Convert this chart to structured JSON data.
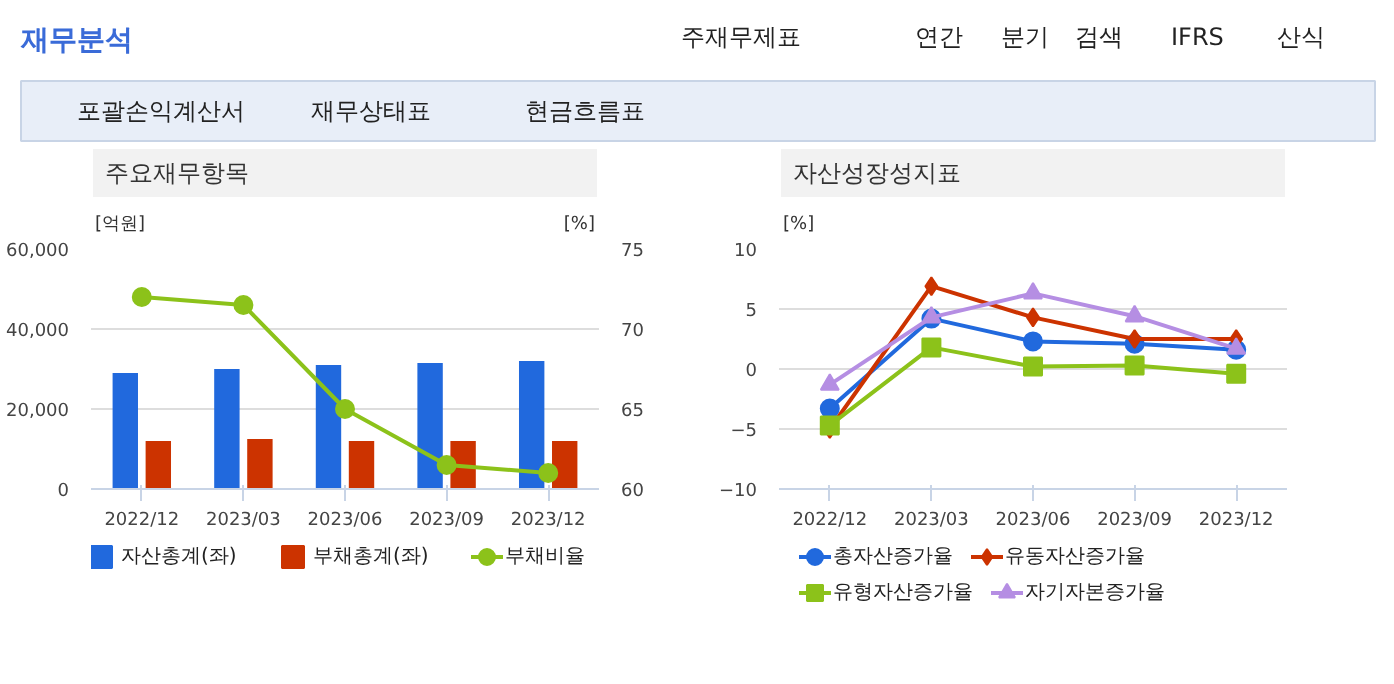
{
  "chart_data": [
    {
      "type": "other",
      "title": "재무분석",
      "annotations": [
        "주재무제표",
        "연간",
        "분기",
        "검색",
        "IFRS",
        "산식",
        "포괄손익계산서",
        "재무상태표",
        "현금흐름표"
      ]
    },
    {
      "type": "bar",
      "title": "주요재무항목",
      "ylabel": "[억원]",
      "y2label": "[%]",
      "categories": [
        "2022/12",
        "2023/03",
        "2023/06",
        "2023/09",
        "2023/12"
      ],
      "series": [
        {
          "name": "자산총계(좌)",
          "color": "#2169dd",
          "values": [
            29000,
            30000,
            31000,
            31500,
            32000
          ]
        },
        {
          "name": "부채총계(좌)",
          "color": "#cc3300",
          "values": [
            12000,
            12500,
            12000,
            12000,
            12000
          ]
        },
        {
          "name": "부채비율",
          "type": "line",
          "axis": "y2",
          "color": "#8cc21a",
          "values": [
            72,
            71.5,
            65,
            61.5,
            61
          ]
        }
      ],
      "ylim": [
        0,
        60000
      ],
      "yticks": [
        0,
        {
          "value": 20000,
          "label": "20,000"
        },
        {
          "value": 40000,
          "label": "40,000"
        },
        {
          "value": 60000,
          "label": "60,000"
        }
      ],
      "y2lim": [
        60,
        75
      ],
      "y2ticks": [
        60,
        65,
        70,
        75
      ],
      "grid": "y",
      "legend": "bottom",
      "marker": "circle"
    },
    {
      "type": "line",
      "title": "자산성장성지표",
      "ylabel": "[%]",
      "categories": [
        "2022/12",
        "2023/03",
        "2023/06",
        "2023/09",
        "2023/12"
      ],
      "series": [
        {
          "name": "총자산증가율",
          "color": "#2169dd",
          "marker": "circle",
          "values": [
            -3.3,
            4.2,
            2.3,
            2.1,
            1.6
          ]
        },
        {
          "name": "유동자산증가율",
          "color": "#cc3300",
          "marker": "diamond",
          "values": [
            -5.0,
            6.9,
            4.3,
            2.5,
            2.5
          ]
        },
        {
          "name": "유형자산증가율",
          "color": "#8cc21a",
          "marker": "square",
          "values": [
            -4.7,
            1.8,
            0.2,
            0.3,
            -0.4
          ]
        },
        {
          "name": "자기자본증가율",
          "color": "#b58ee3",
          "marker": "triangle",
          "values": [
            -1.3,
            4.3,
            6.3,
            4.4,
            1.7
          ]
        }
      ],
      "ylim": [
        -10,
        10
      ],
      "yticks": [
        -10,
        -5,
        0,
        5,
        10
      ],
      "grid": "y",
      "legend": "bottom"
    }
  ]
}
